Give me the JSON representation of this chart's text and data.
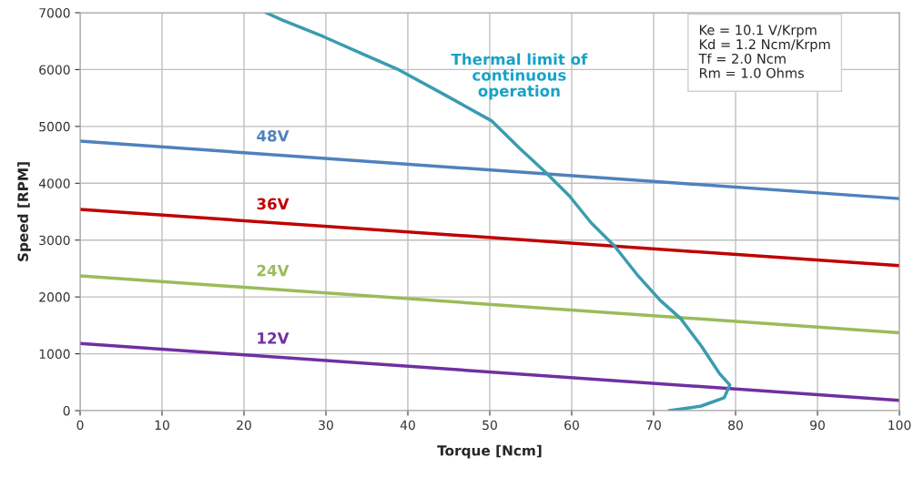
{
  "chart_data": {
    "type": "line",
    "xlabel": "Torque [Ncm]",
    "ylabel": "Speed [RPM]",
    "xlim": [
      0,
      100
    ],
    "xticks": [
      0,
      10,
      20,
      30,
      40,
      50,
      60,
      70,
      80,
      90,
      100
    ],
    "ylim": [
      0,
      7000
    ],
    "yticks": [
      0,
      1000,
      2000,
      3000,
      4000,
      5000,
      6000,
      7000
    ],
    "grid": true,
    "legend": false,
    "marker": "none",
    "line_style": "solid",
    "series": [
      {
        "name": "48V",
        "color": "#4f81bd",
        "x": [
          0,
          100
        ],
        "values": [
          4740,
          3730
        ]
      },
      {
        "name": "36V",
        "color": "#c00000",
        "x": [
          0,
          100
        ],
        "values": [
          3540,
          2550
        ]
      },
      {
        "name": "24V",
        "color": "#9bbb59",
        "x": [
          0,
          100
        ],
        "values": [
          2370,
          1370
        ]
      },
      {
        "name": "12V",
        "color": "#7030a0",
        "x": [
          0,
          100
        ],
        "values": [
          1180,
          180
        ]
      },
      {
        "name": "Thermal limit of\ncontinuous\noperation",
        "color": "#3a9cb0",
        "x": [
          22.7,
          24.7,
          29.7,
          34.7,
          38.7,
          44.7,
          50.2,
          53.6,
          56.9,
          59.7,
          62.4,
          65.2,
          68.0,
          70.8,
          73.3,
          75.8,
          78.0,
          79.3,
          78.6,
          75.8,
          71.9
        ],
        "values": [
          7000,
          6870,
          6580,
          6260,
          6010,
          5540,
          5100,
          4620,
          4180,
          3780,
          3300,
          2900,
          2390,
          1940,
          1620,
          1140,
          660,
          450,
          225,
          80,
          0
        ]
      }
    ],
    "annotations": [
      "Ke = 10.1 V/Krpm\nKd = 1.2 Ncm/Krpm\nTf = 2.0 Ncm\nRm = 1.0 Ohms"
    ]
  }
}
